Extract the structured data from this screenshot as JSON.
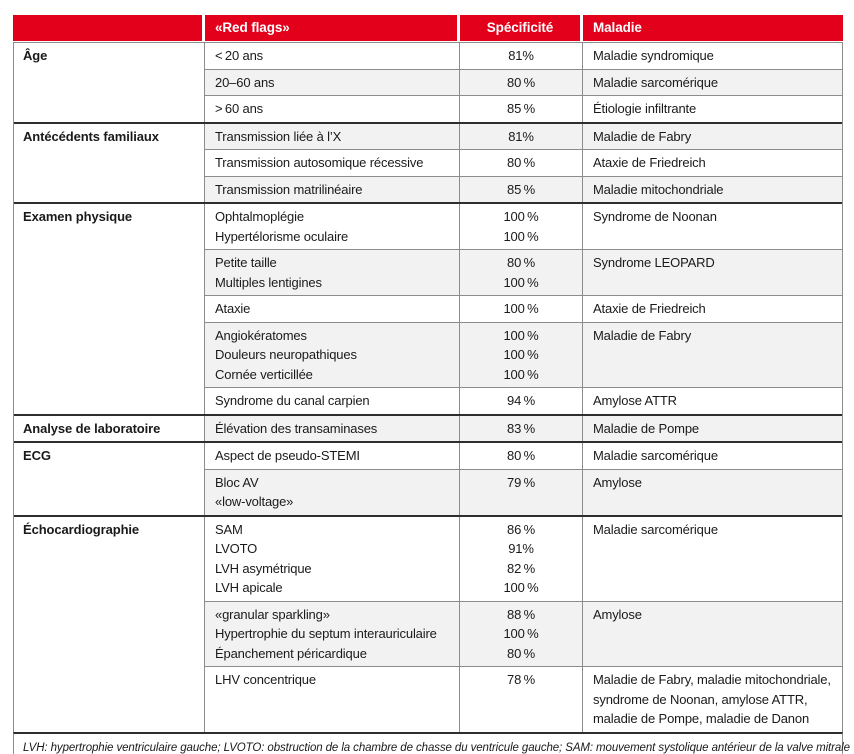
{
  "colors": {
    "header_red": "#e2001a",
    "stripe_gray": "#f2f2f2",
    "grid_line_gray": "#8c8c8c",
    "group_line_dark": "#2e2e2e",
    "text": "#1a1a1a",
    "header_text": "#ffffff"
  },
  "header": {
    "col_category": "",
    "col_flags": "«Red flags»",
    "col_specificity": "Spécificité",
    "col_disease": "Maladie"
  },
  "groups": [
    {
      "category": "Âge",
      "rows": [
        {
          "flags": [
            "< 20 ans"
          ],
          "specs": [
            "81%"
          ],
          "disease": "Maladie syndromique"
        },
        {
          "flags": [
            "20–60 ans"
          ],
          "specs": [
            "80 %"
          ],
          "disease": "Maladie sarcomérique"
        },
        {
          "flags": [
            "> 60 ans"
          ],
          "specs": [
            "85 %"
          ],
          "disease": "Étiologie infiltrante"
        }
      ]
    },
    {
      "category": "Antécédents familiaux",
      "rows": [
        {
          "flags": [
            "Transmission liée à l’X"
          ],
          "specs": [
            "81%"
          ],
          "disease": "Maladie de Fabry"
        },
        {
          "flags": [
            "Transmission autosomique récessive"
          ],
          "specs": [
            "80 %"
          ],
          "disease": "Ataxie de Friedreich"
        },
        {
          "flags": [
            "Transmission matrilinéaire"
          ],
          "specs": [
            "85 %"
          ],
          "disease": "Maladie mitochondriale"
        }
      ]
    },
    {
      "category": "Examen physique",
      "rows": [
        {
          "flags": [
            "Ophtalmoplégie",
            "Hypertélorisme oculaire"
          ],
          "specs": [
            "100 %",
            "100 %"
          ],
          "disease": "Syndrome de Noonan"
        },
        {
          "flags": [
            "Petite taille",
            "Multiples lentigines"
          ],
          "specs": [
            "80 %",
            "100 %"
          ],
          "disease": "Syndrome LEOPARD"
        },
        {
          "flags": [
            "Ataxie"
          ],
          "specs": [
            "100 %"
          ],
          "disease": "Ataxie de Friedreich"
        },
        {
          "flags": [
            "Angiokératomes",
            "Douleurs neuropathiques",
            "Cornée verticillée"
          ],
          "specs": [
            "100 %",
            "100 %",
            "100 %"
          ],
          "disease": "Maladie de Fabry"
        },
        {
          "flags": [
            "Syndrome du canal carpien"
          ],
          "specs": [
            "94 %"
          ],
          "disease": "Amylose ATTR"
        }
      ]
    },
    {
      "category": "Analyse de laboratoire",
      "rows": [
        {
          "flags": [
            "Élévation des transaminases"
          ],
          "specs": [
            "83 %"
          ],
          "disease": "Maladie de Pompe"
        }
      ]
    },
    {
      "category": "ECG",
      "rows": [
        {
          "flags": [
            "Aspect de pseudo-STEMI"
          ],
          "specs": [
            "80 %"
          ],
          "disease": "Maladie sarcomérique"
        },
        {
          "flags": [
            "Bloc AV",
            "«low-voltage»"
          ],
          "specs": [
            "79 %"
          ],
          "disease": "Amylose"
        }
      ]
    },
    {
      "category": "Échocardiographie",
      "rows": [
        {
          "flags": [
            "SAM",
            "LVOTO",
            "LVH asymétrique",
            "LVH apicale"
          ],
          "specs": [
            "86 %",
            "91%",
            "82 %",
            "100 %"
          ],
          "disease": "Maladie sarcomérique"
        },
        {
          "flags": [
            "«granular sparkling»",
            "Hypertrophie du septum interauriculaire",
            "Épanchement péricardique"
          ],
          "specs": [
            "88 %",
            "100 %",
            "80 %"
          ],
          "disease": "Amylose"
        },
        {
          "flags": [
            "LHV concentrique"
          ],
          "specs": [
            "78 %"
          ],
          "disease": [
            "Maladie de Fabry, maladie mitochondriale,",
            "syndrome de Noonan, amylose ATTR,",
            "maladie de Pompe, maladie de Danon"
          ]
        }
      ]
    }
  ],
  "footer": {
    "note": "LVH: hypertrophie ventriculaire gauche; LVOTO: obstruction de la chambre de chasse du ventricule gauche; SAM: mouvement systolique antérieur de la valve mitrale"
  }
}
